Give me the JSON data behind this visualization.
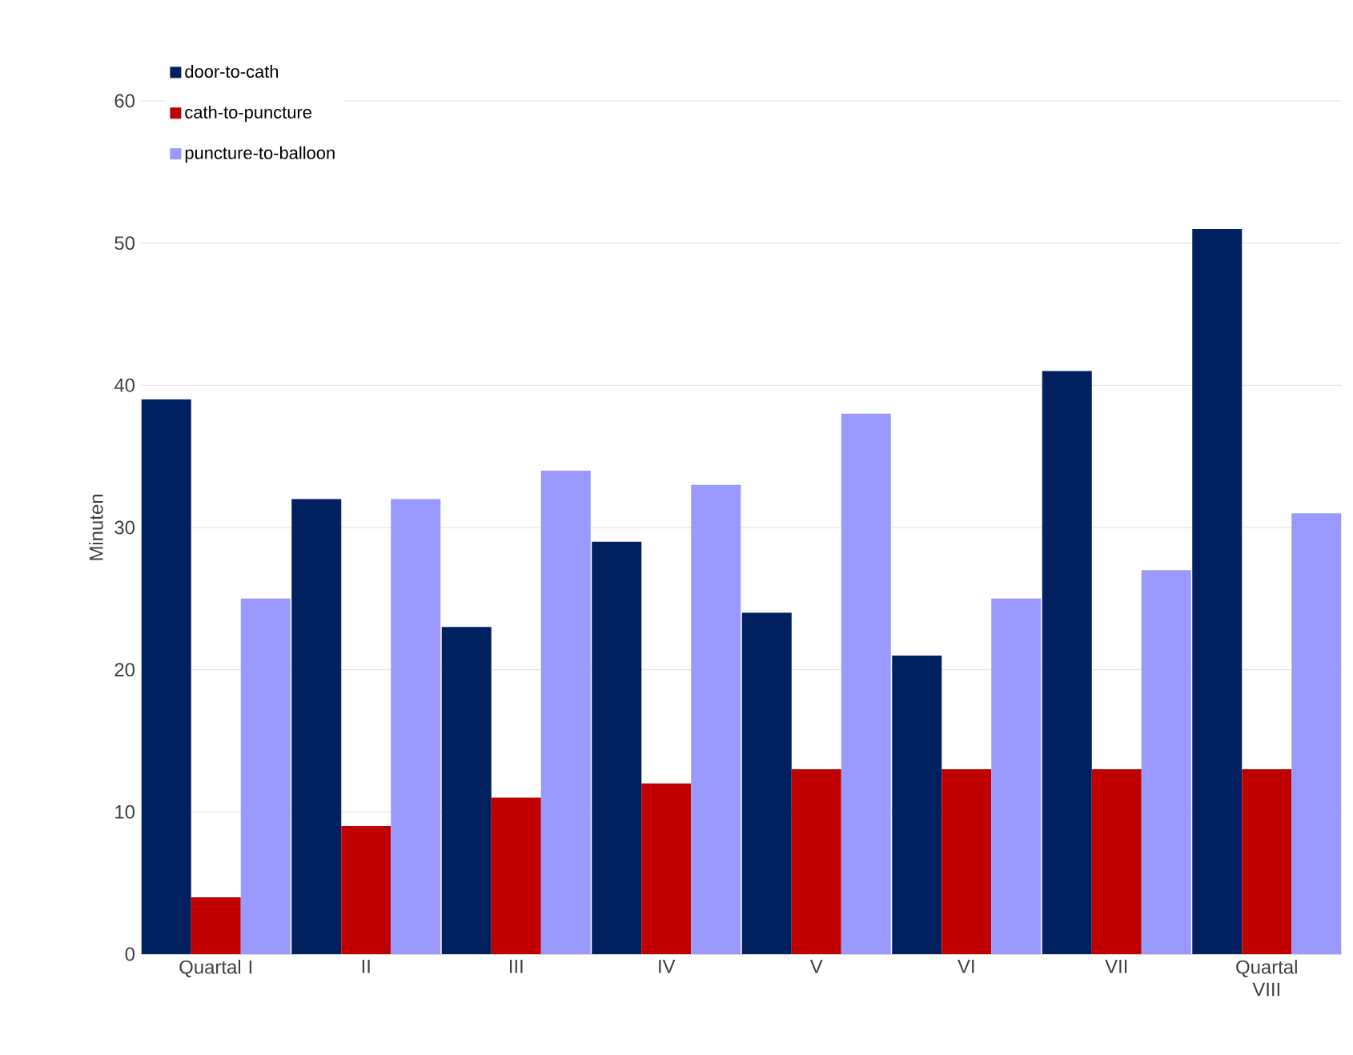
{
  "chart_data": {
    "type": "bar",
    "ylabel": "Minuten",
    "categories": [
      "Quartal I",
      "II",
      "III",
      "IV",
      "V",
      "VI",
      "VII",
      "Quartal VIII"
    ],
    "series": [
      {
        "name": "door-to-cath",
        "color": "#002060",
        "values": [
          39,
          32,
          23,
          29,
          24,
          21,
          41,
          51
        ]
      },
      {
        "name": "cath-to-puncture",
        "color": "#c00000",
        "values": [
          4,
          9,
          11,
          12,
          13,
          13,
          13,
          13
        ]
      },
      {
        "name": "puncture-to-balloon",
        "color": "#9999ff",
        "values": [
          25,
          32,
          34,
          33,
          38,
          25,
          27,
          31
        ]
      }
    ],
    "ylim": [
      0,
      60
    ],
    "yticks": [
      0,
      10,
      20,
      30,
      40,
      50,
      60
    ],
    "grid": "y",
    "legend": "top left"
  }
}
